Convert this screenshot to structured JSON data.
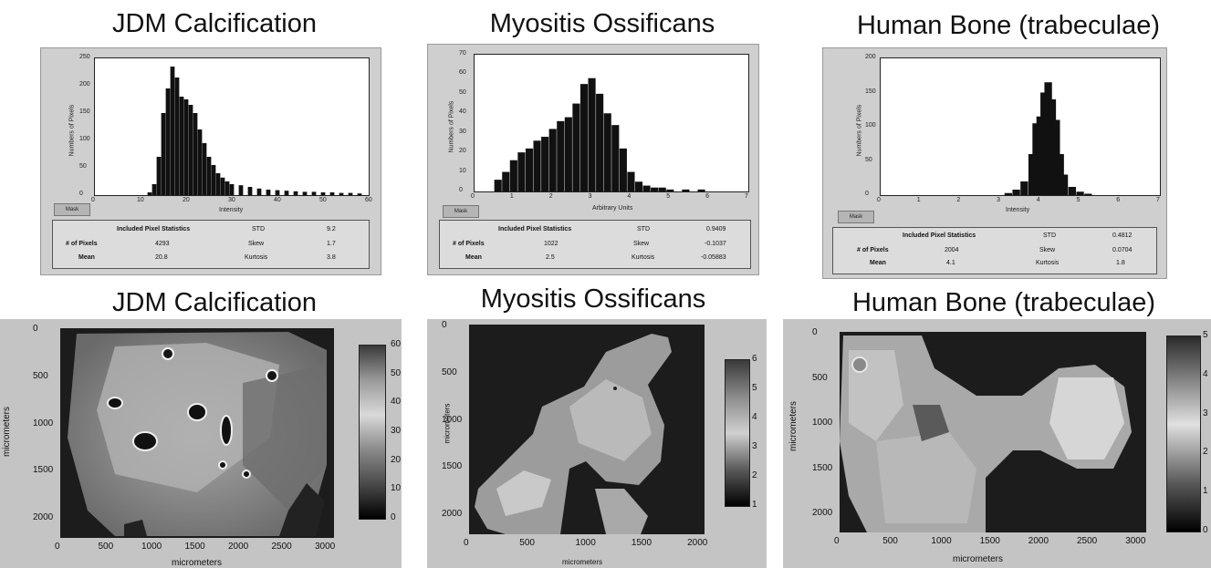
{
  "chart_data": [
    {
      "type": "bar",
      "panel_title": "JDM Calcification",
      "xlabel": "Intensity",
      "ylabel": "Numbers of Pixels",
      "xlim": [
        0,
        60
      ],
      "ylim": [
        0,
        250
      ],
      "xticks": [
        "0",
        "10",
        "20",
        "30",
        "40",
        "50",
        "60"
      ],
      "yticks": [
        "0",
        "50",
        "100",
        "150",
        "200",
        "250"
      ],
      "x": [
        12,
        13,
        14,
        15,
        16,
        17,
        18,
        19,
        20,
        21,
        22,
        23,
        24,
        25,
        26,
        27,
        28,
        29,
        30,
        32,
        34,
        36,
        38,
        40,
        42,
        44,
        46,
        48,
        50,
        52,
        54,
        56,
        58
      ],
      "values": [
        5,
        20,
        70,
        150,
        195,
        235,
        215,
        180,
        175,
        165,
        150,
        120,
        95,
        70,
        55,
        40,
        32,
        25,
        20,
        18,
        15,
        12,
        10,
        9,
        8,
        7,
        6,
        6,
        5,
        5,
        4,
        4,
        3
      ],
      "stats": {
        "header": "Included Pixel Statistics",
        "rows": [
          {
            "label": "STD",
            "value": "9.2"
          },
          {
            "label": "# of Pixels",
            "value": "4293"
          },
          {
            "label": "Skew",
            "value": "1.7"
          },
          {
            "label": "Mean",
            "value": "20.8"
          },
          {
            "label": "Kurtosis",
            "value": "3.8"
          }
        ]
      },
      "button_label": "Mask"
    },
    {
      "type": "bar",
      "panel_title": "Myositis Ossificans",
      "xlabel": "Arbitrary Units",
      "ylabel": "Numbers of Pixels",
      "xlim": [
        0,
        7
      ],
      "ylim": [
        0,
        70
      ],
      "xticks": [
        "0",
        "1",
        "2",
        "3",
        "4",
        "5",
        "6",
        "7"
      ],
      "yticks": [
        "0",
        "10",
        "20",
        "30",
        "40",
        "50",
        "60",
        "70"
      ],
      "x": [
        0.6,
        0.8,
        1.0,
        1.2,
        1.4,
        1.6,
        1.8,
        2.0,
        2.2,
        2.4,
        2.6,
        2.8,
        3.0,
        3.2,
        3.4,
        3.6,
        3.8,
        4.0,
        4.2,
        4.4,
        4.6,
        4.8,
        5.0,
        5.4,
        5.8
      ],
      "values": [
        6,
        10,
        16,
        20,
        22,
        26,
        28,
        32,
        36,
        38,
        45,
        55,
        58,
        50,
        40,
        34,
        22,
        10,
        5,
        3,
        2,
        2,
        1,
        1,
        1
      ],
      "stats": {
        "header": "Included Pixel Statistics",
        "rows": [
          {
            "label": "STD",
            "value": "0.9409"
          },
          {
            "label": "# of Pixels",
            "value": "1022"
          },
          {
            "label": "Skew",
            "value": "-0.1037"
          },
          {
            "label": "Mean",
            "value": "2.5"
          },
          {
            "label": "Kurtosis",
            "value": "-0.05883"
          }
        ]
      },
      "button_label": "Mask"
    },
    {
      "type": "bar",
      "panel_title": "Human Bone (trabeculae)",
      "xlabel": "Intensity",
      "ylabel": "Numbers of Pixels",
      "xlim": [
        0,
        7
      ],
      "ylim": [
        0,
        200
      ],
      "xticks": [
        "0",
        "1",
        "2",
        "3",
        "4",
        "5",
        "6",
        "7"
      ],
      "yticks": [
        "0",
        "50",
        "100",
        "150",
        "200"
      ],
      "x": [
        3.2,
        3.4,
        3.6,
        3.8,
        3.9,
        4.0,
        4.1,
        4.2,
        4.3,
        4.4,
        4.5,
        4.6,
        4.8,
        5.0,
        5.2
      ],
      "values": [
        3,
        8,
        20,
        60,
        105,
        115,
        150,
        165,
        140,
        110,
        60,
        30,
        12,
        5,
        2
      ],
      "stats": {
        "header": "Included Pixel Statistics",
        "rows": [
          {
            "label": "STD",
            "value": "0.4812"
          },
          {
            "label": "# of Pixels",
            "value": "2004"
          },
          {
            "label": "Skew",
            "value": "0.0704"
          },
          {
            "label": "Mean",
            "value": "4.1"
          },
          {
            "label": "Kurtosis",
            "value": "1.8"
          }
        ]
      },
      "button_label": "Mask"
    },
    {
      "type": "heatmap",
      "panel_title": "JDM Calcification",
      "xlabel": "micrometers",
      "ylabel": "micrometers",
      "xticks": [
        "0",
        "500",
        "1000",
        "1500",
        "2000",
        "2500",
        "3000"
      ],
      "yticks": [
        "0",
        "500",
        "1000",
        "1500",
        "2000"
      ],
      "colorbar_ticks": [
        "0",
        "10",
        "20",
        "30",
        "40",
        "50",
        "60"
      ]
    },
    {
      "type": "heatmap",
      "panel_title": "Myositis Ossificans",
      "xlabel": "micrometers",
      "ylabel": "micrometers",
      "xticks": [
        "0",
        "500",
        "1000",
        "1500",
        "2000"
      ],
      "yticks": [
        "0",
        "500",
        "1000",
        "1500",
        "2000"
      ],
      "colorbar_ticks": [
        "1",
        "2",
        "3",
        "4",
        "5",
        "6"
      ]
    },
    {
      "type": "heatmap",
      "panel_title": "Human Bone (trabeculae)",
      "xlabel": "micrometers",
      "ylabel": "micrometers",
      "xticks": [
        "0",
        "500",
        "1000",
        "1500",
        "2000",
        "2500",
        "3000"
      ],
      "yticks": [
        "0",
        "500",
        "1000",
        "1500",
        "2000"
      ],
      "colorbar_ticks": [
        "0",
        "1",
        "2",
        "3",
        "4",
        "5"
      ]
    }
  ]
}
